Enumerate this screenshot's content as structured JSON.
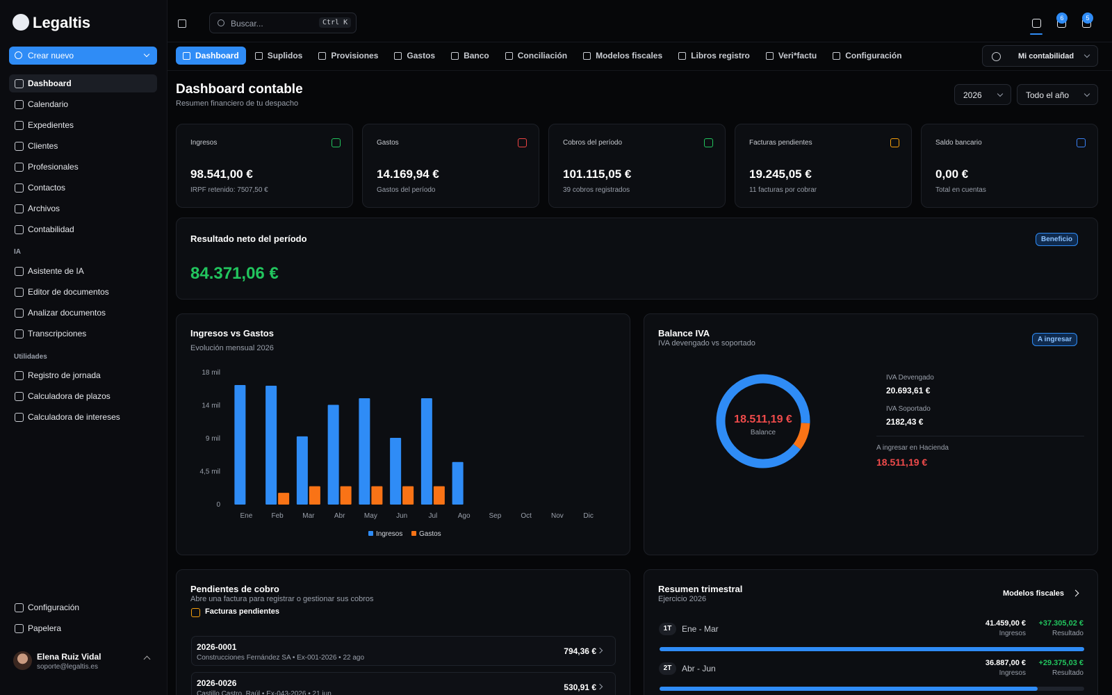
{
  "sidebar": {
    "brand": "Legaltis",
    "create": "Crear nuevo",
    "nav": [
      "Dashboard",
      "Calendario",
      "Expedientes",
      "Clientes",
      "Profesionales",
      "Contactos",
      "Archivos",
      "Contabilidad"
    ],
    "ia_title": "IA",
    "ia": [
      "Asistente de IA",
      "Editor de documentos",
      "Analizar documentos",
      "Transcripciones"
    ],
    "utils_title": "Utilidades",
    "utils": [
      "Registro de jornada",
      "Calculadora de plazos",
      "Calculadora de intereses"
    ],
    "bottom": [
      "Configuración",
      "Papelera"
    ],
    "user": {
      "name": "Elena Ruiz Vidal",
      "email": "soporte@legaltis.es"
    }
  },
  "topbar": {
    "search": "Buscar...",
    "shortcut": "Ctrl K",
    "badges": [
      6,
      5
    ]
  },
  "tabs": {
    "items": [
      "Dashboard",
      "Suplidos",
      "Provisiones",
      "Gastos",
      "Banco",
      "Conciliación",
      "Modelos fiscales",
      "Libros registro",
      "Veri*factu",
      "Configuración"
    ],
    "account": "Mi contabilidad"
  },
  "header": {
    "title": "Dashboard contable",
    "subtitle": "Resumen financiero de tu despacho",
    "year": "2026",
    "period": "Todo el año"
  },
  "kpis": [
    {
      "label": "Ingresos",
      "value": "98.541,00 €",
      "note": "IRPF retenido: 7507,50 €"
    },
    {
      "label": "Gastos",
      "value": "14.169,94 €",
      "note": "Gastos del período"
    },
    {
      "label": "Cobros del período",
      "value": "101.115,05 €",
      "note": "39 cobros registrados"
    },
    {
      "label": "Facturas pendientes",
      "value": "19.245,05 €",
      "note": "11 facturas por cobrar"
    },
    {
      "label": "Saldo bancario",
      "value": "0,00 €",
      "note": "Total en cuentas"
    }
  ],
  "result": {
    "title": "Resultado neto del período",
    "badge": "Beneficio",
    "value": "84.371,06 €"
  },
  "chart_data": [
    {
      "type": "bar",
      "title": "Ingresos vs Gastos",
      "subtitle": "Evolución mensual 2026",
      "categories": [
        "Ene",
        "Feb",
        "Mar",
        "Abr",
        "May",
        "Jun",
        "Jul",
        "Ago",
        "Sep",
        "Oct",
        "Nov",
        "Dic"
      ],
      "series": [
        {
          "name": "Ingresos",
          "color": "#2f8cf6",
          "values": [
            16300,
            16200,
            9300,
            13600,
            14500,
            9100,
            14500,
            5800,
            0,
            0,
            0,
            0
          ]
        },
        {
          "name": "Gastos",
          "color": "#f97316",
          "values": [
            0,
            1600,
            2500,
            2500,
            2500,
            2500,
            2500,
            0,
            0,
            0,
            0,
            0
          ]
        }
      ],
      "ylim": [
        0,
        18000
      ],
      "yticks": [
        0,
        {
          "value": 4500,
          "label": "4,5 mil"
        },
        {
          "value": 9000,
          "label": "9 mil"
        },
        {
          "value": 13500,
          "label": "14 mil"
        },
        {
          "value": 18000,
          "label": "18 mil"
        }
      ],
      "legend": "bottom"
    },
    {
      "type": "donut",
      "title": "Balance IVA",
      "subtitle": "IVA devengado vs soportado",
      "badge": "A ingresar",
      "categories": [
        "IVA Devengado",
        "IVA Soportado"
      ],
      "values": [
        20693.61,
        2182.43
      ],
      "value_labels": [
        "20.693,61 €",
        "2182,43 €"
      ],
      "colors": [
        "#2f8cf6",
        "#f97316"
      ],
      "center_value": "18.511,19 €",
      "center_label": "Balance",
      "footer_label": "A ingresar en Hacienda",
      "footer_value": "18.511,19 €"
    }
  ],
  "receivables": {
    "title": "Pendientes de cobro",
    "subtitle": "Abre una factura para registrar o gestionar sus cobros",
    "section": "Facturas pendientes",
    "invoices": [
      {
        "number": "2026-0001",
        "detail": "Construcciones Fernández SA • Ex-001-2026 • 22 ago",
        "amount": "794,36 €"
      },
      {
        "number": "2026-0026",
        "detail": "Castillo Castro, Raúl • Ex-043-2026 • 21 jun",
        "amount": "530,91 €"
      }
    ]
  },
  "quarterly": {
    "title": "Resumen trimestral",
    "subtitle": "Ejercicio 2026",
    "link": "Modelos fiscales",
    "income_caption": "Ingresos",
    "result_caption": "Resultado",
    "quarters": [
      {
        "code": "1T",
        "range": "Ene - Mar",
        "income": 41459,
        "income_label": "41.459,00 €",
        "result": "+37.305,02 €"
      },
      {
        "code": "2T",
        "range": "Abr - Jun",
        "income": 36887,
        "income_label": "36.887,00 €",
        "result": "+29.375,03 €"
      }
    ]
  }
}
